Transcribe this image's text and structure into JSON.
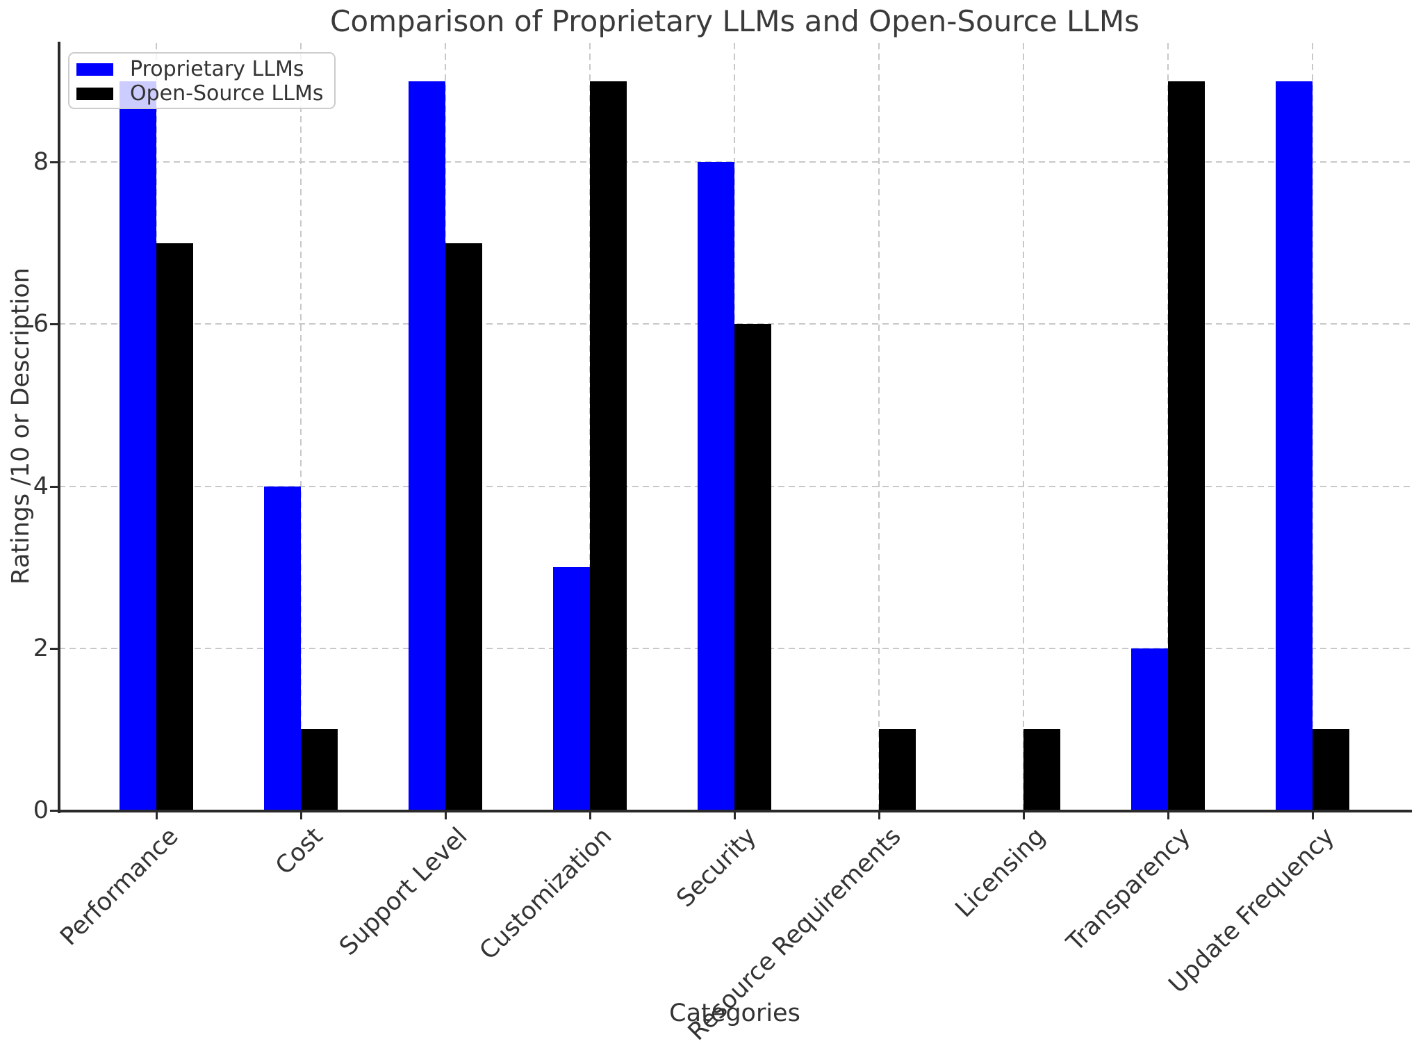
{
  "figure": {
    "title": "Comparison of Proprietary LLMs and Open-Source LLMs",
    "xlabel": "Categories",
    "ylabel": "Ratings /10 or Description"
  },
  "legend": {
    "position": "upper left",
    "entries": [
      {
        "label": "Proprietary LLMs",
        "color": "#0000ff",
        "swatch_icon": "blue-square-icon"
      },
      {
        "label": "Open-Source LLMs",
        "color": "#000000",
        "swatch_icon": "black-square-icon"
      }
    ]
  },
  "chart_data": {
    "type": "bar",
    "title": "Comparison of Proprietary LLMs and Open-Source LLMs",
    "xlabel": "Categories",
    "ylabel": "Ratings /10 or Description",
    "categories": [
      "Performance",
      "Cost",
      "Support Level",
      "Customization",
      "Security",
      "Resource Requirements",
      "Licensing",
      "Transparency",
      "Update Frequency"
    ],
    "series": [
      {
        "name": "Proprietary LLMs",
        "color": "#0000ff",
        "values": [
          9,
          4,
          9,
          3,
          8,
          0,
          0,
          2,
          9
        ]
      },
      {
        "name": "Open-Source LLMs",
        "color": "#000000",
        "values": [
          7,
          1,
          7,
          9,
          6,
          1,
          1,
          9,
          1
        ]
      }
    ],
    "yticks": [
      0,
      2,
      4,
      6,
      8
    ],
    "ylim": [
      0,
      9.49
    ],
    "xtick_rotation": 45,
    "grid": {
      "visible": true,
      "style": "dashed",
      "axes": "both",
      "color": "#c8c8c8"
    },
    "legend_position": "upper left",
    "background": "#ffffff"
  }
}
